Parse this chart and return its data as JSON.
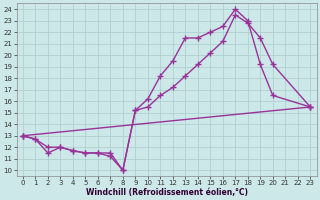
{
  "xlabel": "Windchill (Refroidissement éolien,°C)",
  "bg_color": "#cce8e8",
  "line_color": "#993399",
  "grid_color": "#aacccc",
  "xlim": [
    -0.5,
    23.5
  ],
  "ylim": [
    9.5,
    24.5
  ],
  "xticks": [
    0,
    1,
    2,
    3,
    4,
    5,
    6,
    7,
    8,
    9,
    10,
    11,
    12,
    13,
    14,
    15,
    16,
    17,
    18,
    19,
    20,
    21,
    22,
    23
  ],
  "yticks": [
    10,
    11,
    12,
    13,
    14,
    15,
    16,
    17,
    18,
    19,
    20,
    21,
    22,
    23,
    24
  ],
  "line1_x": [
    0,
    1,
    2,
    3,
    4,
    5,
    6,
    7,
    8,
    9,
    10,
    11,
    12,
    13,
    14,
    15,
    16,
    17,
    18,
    19,
    20,
    23
  ],
  "line1_y": [
    13,
    12.7,
    11.5,
    12,
    11.7,
    11.5,
    11.5,
    11.2,
    10,
    15.2,
    16.2,
    18.2,
    19.5,
    21.5,
    21.5,
    22,
    22.5,
    24,
    23,
    19.2,
    16.5,
    15.5
  ],
  "line2_x": [
    0,
    1,
    2,
    3,
    4,
    5,
    6,
    7,
    8,
    9,
    10,
    11,
    12,
    13,
    14,
    15,
    16,
    17,
    18,
    19,
    20,
    23
  ],
  "line2_y": [
    13,
    12.7,
    12,
    12,
    11.7,
    11.5,
    11.5,
    11.5,
    10,
    15.2,
    15.5,
    16.5,
    17.2,
    18.2,
    19.2,
    20.2,
    21.2,
    23.5,
    22.8,
    21.5,
    19.2,
    15.5
  ],
  "line3_x": [
    0,
    23
  ],
  "line3_y": [
    13,
    15.5
  ],
  "marker": "+",
  "marker_size": 4,
  "marker_lw": 1.0,
  "line_width": 1.0,
  "tick_fontsize": 5,
  "xlabel_fontsize": 5.5
}
